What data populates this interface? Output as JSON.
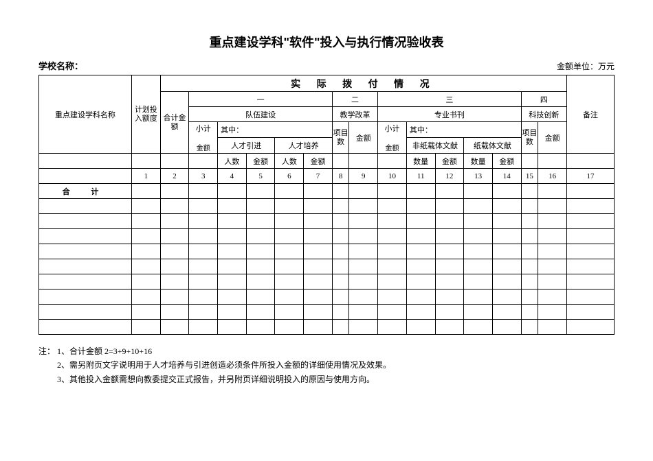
{
  "title": "重点建设学科\"软件\"投入与执行情况验收表",
  "school_label": "学校名称：",
  "unit_label": "金额单位：万元",
  "header": {
    "col_name": "重点建设学科名称",
    "col_plan": "计划投入额度",
    "col_total": "合计金额",
    "actual": "实 际 拨 付 情 况",
    "sec1": "一",
    "sec2": "二",
    "sec3": "三",
    "sec4": "四",
    "remark": "备注",
    "team": "队伍建设",
    "teach": "教学改革",
    "journal": "专业书刊",
    "tech": "科技创新",
    "subtotal": "小计",
    "amount": "金额",
    "qizhong": "其中：",
    "talent_in": "人才引进",
    "talent_train": "人才培养",
    "proj_count": "项目数",
    "nonpaper": "非纸载体文献",
    "paper": "纸载体文献",
    "count": "人数",
    "qty": "数量"
  },
  "index_row": [
    "",
    "1",
    "2",
    "3",
    "4",
    "5",
    "6",
    "7",
    "8",
    "9",
    "10",
    "11",
    "12",
    "13",
    "14",
    "15",
    "16",
    "17"
  ],
  "total_label": "合   计",
  "blank_rows": 9,
  "notes": [
    "注： 1、合计金额 2=3+9+10+16",
    "　　 2、需另附页文字说明用于人才培养与引进创造必须条件所投入金额的详细使用情况及效果。",
    "　　 3、其他投入金额需想向教委提交正式报告，并另附页详细说明投入的原因与使用方向。"
  ],
  "style": {
    "page_bg": "#ffffff",
    "text_color": "#000000",
    "border_color": "#000000",
    "title_fontsize": 18,
    "body_fontsize": 12,
    "cell_fontsize": 11
  }
}
